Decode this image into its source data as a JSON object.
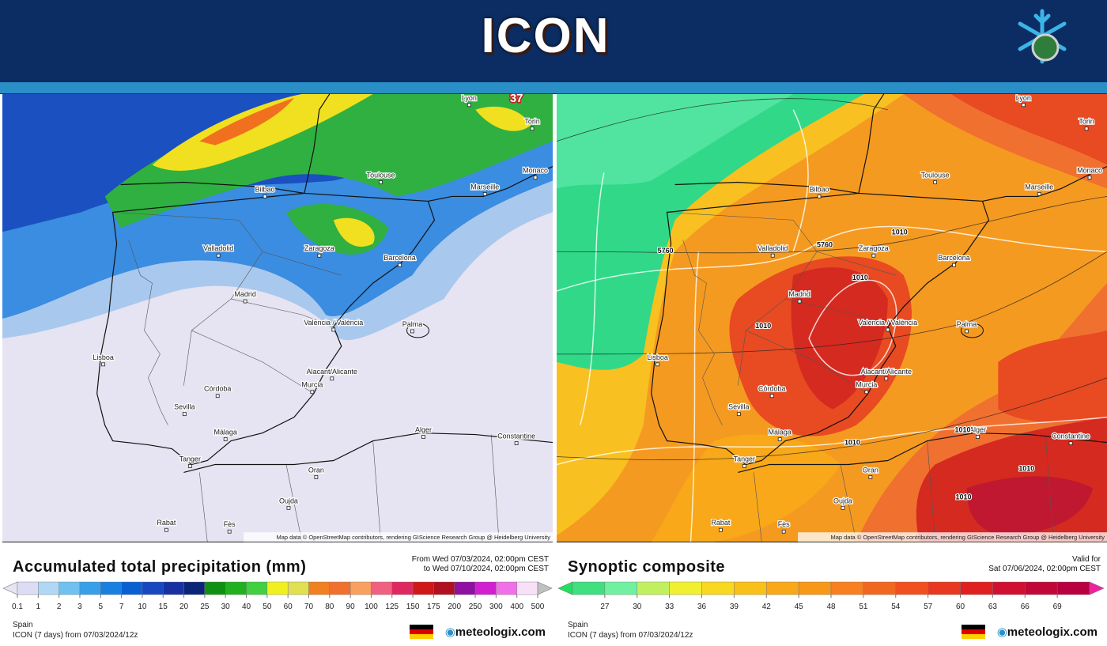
{
  "header": {
    "title": "ICON"
  },
  "panels": [
    {
      "map": {
        "cities": [
          "Lyon",
          "Torin",
          "Monaco",
          "Toulouse",
          "Marseille",
          "Bilbao",
          "Valladolid",
          "Zaragoza",
          "Barcelona",
          "Madrid",
          "Palma",
          "Valencia / València",
          "Lisboa",
          "Alacant/Alicante",
          "Murcia",
          "Córdoba",
          "Sevilla",
          "Málaga",
          "Alger",
          "Constantine",
          "Tanger",
          "Oran",
          "Oujda",
          "Rabat",
          "Fès"
        ],
        "labels": [
          "37"
        ],
        "attribution": "Map data © OpenStreetMap contributors, rendering GIScience Research Group @ Heidelberg University"
      },
      "legend": {
        "title": "Accumulated total precipitation (mm)",
        "time_lines": [
          "From Wed 07/03/2024, 02:00pm CEST",
          "to Wed 07/10/2024, 02:00pm CEST"
        ],
        "scale_labels": [
          "0.1",
          "1",
          "2",
          "3",
          "5",
          "7",
          "10",
          "15",
          "20",
          "25",
          "30",
          "40",
          "50",
          "60",
          "70",
          "80",
          "90",
          "100",
          "125",
          "150",
          "175",
          "200",
          "250",
          "300",
          "400",
          "500"
        ],
        "scale_colors": [
          "#e6e6f2",
          "#dcdcf4",
          "#b0d8f4",
          "#70c0f0",
          "#38a0e8",
          "#1a80e0",
          "#0a60d0",
          "#1848c0",
          "#1830a0",
          "#0c2478",
          "#109010",
          "#20b020",
          "#40d040",
          "#f0f020",
          "#e0e050",
          "#f08020",
          "#f07030",
          "#f8a060",
          "#f06080",
          "#e02860",
          "#d01818",
          "#b01020",
          "#9010a0",
          "#d020d0",
          "#f070e8",
          "#f8e0f8",
          "#c0c0c0"
        ],
        "region": "Spain",
        "run": "ICON (7 days) from 07/03/2024/12z",
        "brand": "meteologix.com"
      }
    },
    {
      "map": {
        "cities": [
          "Lyon",
          "Torin",
          "Monaco",
          "Toulouse",
          "Marseille",
          "Bilbao",
          "Valladolid",
          "Zaragoza",
          "Barcelona",
          "Madrid",
          "Palma",
          "Valencia / València",
          "Lisboa",
          "Alacant/Alicante",
          "Murcia",
          "Córdoba",
          "Sevilla",
          "Málaga",
          "Alger",
          "Constantine",
          "Tanger",
          "Oran",
          "Oujda",
          "Rabat",
          "Fès"
        ],
        "labels": [
          "5760",
          "5760",
          "1010",
          "1010",
          "1010",
          "1010",
          "1010",
          "1010",
          "1010"
        ],
        "attribution": "Map data © OpenStreetMap contributors, rendering GIScience Research Group @ Heidelberg University"
      },
      "legend": {
        "title": "Synoptic composite",
        "time_lines": [
          "Valid for",
          "Sat 07/06/2024, 02:00pm CEST"
        ],
        "scale_labels": [
          "27",
          "30",
          "33",
          "36",
          "39",
          "42",
          "45",
          "48",
          "51",
          "54",
          "57",
          "60",
          "63",
          "66",
          "69"
        ],
        "scale_colors": [
          "#20e060",
          "#40e080",
          "#70f0a0",
          "#c0f060",
          "#f0f030",
          "#f8d820",
          "#f8c018",
          "#f8a818",
          "#f89818",
          "#f88020",
          "#f06820",
          "#f05020",
          "#e83820",
          "#e02020",
          "#d01030",
          "#c00838",
          "#b80040",
          "#f020a0"
        ],
        "region": "Spain",
        "run": "ICON (7 days) from 07/03/2024/12z",
        "brand": "meteologix.com"
      }
    }
  ]
}
